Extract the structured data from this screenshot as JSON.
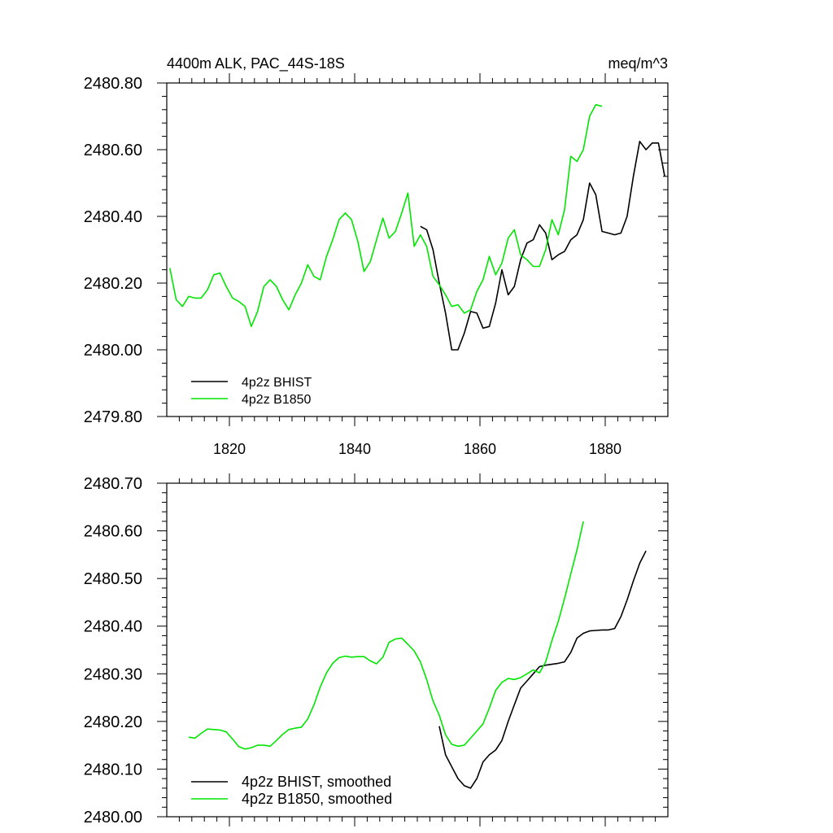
{
  "chart_data": [
    {
      "type": "line",
      "title_left": "4400m ALK, PAC_44S-18S",
      "title_right": "meq/m^3",
      "xlabel": "",
      "ylabel": "",
      "xlim": [
        1810,
        1890
      ],
      "ylim": [
        2479.8,
        2480.8
      ],
      "x_ticks": [
        1820,
        1840,
        1860,
        1880
      ],
      "x_tick_labels": [
        "1820",
        "1840",
        "1860",
        "1880"
      ],
      "y_ticks": [
        2479.8,
        2480.0,
        2480.2,
        2480.4,
        2480.6,
        2480.8
      ],
      "y_tick_labels": [
        "2479.80",
        "2480.00",
        "2480.20",
        "2480.40",
        "2480.60",
        "2480.80"
      ],
      "legend_position": "bottom-left",
      "series": [
        {
          "name": "4p2z BHIST",
          "color": "#000000",
          "x": [
            1850.5,
            1851.5,
            1852.5,
            1853.5,
            1854.5,
            1855.5,
            1856.5,
            1857.5,
            1858.5,
            1859.5,
            1860.5,
            1861.5,
            1862.5,
            1863.5,
            1864.5,
            1865.5,
            1866.5,
            1867.5,
            1868.5,
            1869.5,
            1870.5,
            1871.5,
            1872.5,
            1873.5,
            1874.5,
            1875.5,
            1876.5,
            1877.5,
            1878.5,
            1879.5,
            1880.5,
            1881.5,
            1882.5,
            1883.5,
            1884.5,
            1885.5,
            1886.5,
            1887.5,
            1888.5,
            1889.5
          ],
          "y": [
            2480.37,
            2480.36,
            2480.3,
            2480.2,
            2480.11,
            2480.0,
            2480.0,
            2480.05,
            2480.115,
            2480.11,
            2480.065,
            2480.07,
            2480.14,
            2480.24,
            2480.165,
            2480.19,
            2480.27,
            2480.32,
            2480.33,
            2480.375,
            2480.35,
            2480.27,
            2480.285,
            2480.295,
            2480.33,
            2480.345,
            2480.39,
            2480.5,
            2480.465,
            2480.355,
            2480.35,
            2480.345,
            2480.35,
            2480.4,
            2480.52,
            2480.625,
            2480.6,
            2480.62,
            2480.62,
            2480.52
          ]
        },
        {
          "name": "4p2z B1850",
          "color": "#00e600",
          "x": [
            1810.5,
            1811.5,
            1812.5,
            1813.5,
            1814.5,
            1815.5,
            1816.5,
            1817.5,
            1818.5,
            1819.5,
            1820.5,
            1821.5,
            1822.5,
            1823.5,
            1824.5,
            1825.5,
            1826.5,
            1827.5,
            1828.5,
            1829.5,
            1830.5,
            1831.5,
            1832.5,
            1833.5,
            1834.5,
            1835.5,
            1836.5,
            1837.5,
            1838.5,
            1839.5,
            1840.5,
            1841.5,
            1842.5,
            1843.5,
            1844.5,
            1845.5,
            1846.5,
            1847.5,
            1848.5,
            1849.5,
            1850.5,
            1851.5,
            1852.5,
            1853.5,
            1854.5,
            1855.5,
            1856.5,
            1857.5,
            1858.5,
            1859.5,
            1860.5,
            1861.5,
            1862.5,
            1863.5,
            1864.5,
            1865.5,
            1866.5,
            1867.5,
            1868.5,
            1869.5,
            1870.5,
            1871.5,
            1872.5,
            1873.5,
            1874.5,
            1875.5,
            1876.5,
            1877.5,
            1878.5,
            1879.5
          ],
          "y": [
            2480.245,
            2480.15,
            2480.13,
            2480.16,
            2480.155,
            2480.155,
            2480.18,
            2480.225,
            2480.23,
            2480.19,
            2480.155,
            2480.145,
            2480.13,
            2480.07,
            2480.115,
            2480.19,
            2480.21,
            2480.19,
            2480.15,
            2480.12,
            2480.165,
            2480.2,
            2480.255,
            2480.22,
            2480.21,
            2480.28,
            2480.33,
            2480.39,
            2480.41,
            2480.39,
            2480.325,
            2480.235,
            2480.265,
            2480.33,
            2480.395,
            2480.335,
            2480.355,
            2480.41,
            2480.47,
            2480.31,
            2480.345,
            2480.31,
            2480.22,
            2480.195,
            2480.165,
            2480.13,
            2480.135,
            2480.11,
            2480.12,
            2480.175,
            2480.21,
            2480.28,
            2480.225,
            2480.26,
            2480.335,
            2480.36,
            2480.285,
            2480.27,
            2480.25,
            2480.25,
            2480.3,
            2480.39,
            2480.345,
            2480.42,
            2480.58,
            2480.565,
            2480.6,
            2480.7,
            2480.735,
            2480.73
          ]
        }
      ]
    },
    {
      "type": "line",
      "title": "",
      "xlabel": "",
      "ylabel": "",
      "xlim": [
        1810,
        1890
      ],
      "ylim": [
        2480.0,
        2480.7
      ],
      "x_ticks": [
        1820,
        1840,
        1860,
        1880
      ],
      "y_ticks": [
        2480.0,
        2480.1,
        2480.2,
        2480.3,
        2480.4,
        2480.5,
        2480.6,
        2480.7
      ],
      "y_tick_labels": [
        "2480.00",
        "2480.10",
        "2480.20",
        "2480.30",
        "2480.40",
        "2480.50",
        "2480.60",
        "2480.70"
      ],
      "legend_position": "bottom-left",
      "series": [
        {
          "name": "4p2z BHIST, smoothed",
          "color": "#000000",
          "x": [
            1853.5,
            1854.5,
            1855.5,
            1856.5,
            1857.5,
            1858.5,
            1859.5,
            1860.5,
            1861.5,
            1862.5,
            1863.5,
            1864.5,
            1865.5,
            1866.5,
            1867.5,
            1868.5,
            1869.5,
            1870.5,
            1871.5,
            1872.5,
            1873.5,
            1874.5,
            1875.5,
            1876.5,
            1877.5,
            1878.5,
            1879.5,
            1880.5,
            1881.5,
            1882.5,
            1883.5,
            1884.5,
            1885.5,
            1886.5
          ],
          "y": [
            2480.19,
            2480.13,
            2480.105,
            2480.08,
            2480.065,
            2480.06,
            2480.08,
            2480.115,
            2480.13,
            2480.14,
            2480.16,
            2480.2,
            2480.235,
            2480.27,
            2480.285,
            2480.3,
            2480.315,
            2480.318,
            2480.32,
            2480.322,
            2480.325,
            2480.345,
            2480.375,
            2480.385,
            2480.39,
            2480.391,
            2480.392,
            2480.392,
            2480.395,
            2480.42,
            2480.455,
            2480.495,
            2480.532,
            2480.558
          ]
        },
        {
          "name": "4p2z B1850, smoothed",
          "color": "#00e600",
          "x": [
            1813.5,
            1814.5,
            1815.5,
            1816.5,
            1817.5,
            1818.5,
            1819.5,
            1820.5,
            1821.5,
            1822.5,
            1823.5,
            1824.5,
            1825.5,
            1826.5,
            1827.5,
            1828.5,
            1829.5,
            1830.5,
            1831.5,
            1832.5,
            1833.5,
            1834.5,
            1835.5,
            1836.5,
            1837.5,
            1838.5,
            1839.5,
            1840.5,
            1841.5,
            1842.5,
            1843.5,
            1844.5,
            1845.5,
            1846.5,
            1847.5,
            1848.5,
            1849.5,
            1850.5,
            1851.5,
            1852.5,
            1853.5,
            1854.5,
            1855.5,
            1856.5,
            1857.5,
            1858.5,
            1859.5,
            1860.5,
            1861.5,
            1862.5,
            1863.5,
            1864.5,
            1865.5,
            1866.5,
            1867.5,
            1868.5,
            1869.5,
            1870.5,
            1871.5,
            1872.5,
            1873.5,
            1874.5,
            1875.5,
            1876.5
          ],
          "y": [
            2480.167,
            2480.165,
            2480.175,
            2480.184,
            2480.183,
            2480.182,
            2480.178,
            2480.163,
            2480.147,
            2480.142,
            2480.145,
            2480.15,
            2480.15,
            2480.148,
            2480.16,
            2480.173,
            2480.183,
            2480.186,
            2480.188,
            2480.205,
            2480.235,
            2480.272,
            2480.302,
            2480.322,
            2480.334,
            2480.337,
            2480.335,
            2480.336,
            2480.336,
            2480.327,
            2480.321,
            2480.335,
            2480.366,
            2480.373,
            2480.375,
            2480.362,
            2480.348,
            2480.325,
            2480.288,
            2480.243,
            2480.213,
            2480.172,
            2480.152,
            2480.148,
            2480.15,
            2480.165,
            2480.18,
            2480.195,
            2480.228,
            2480.265,
            2480.282,
            2480.29,
            2480.288,
            2480.292,
            2480.3,
            2480.308,
            2480.302,
            2480.325,
            2480.37,
            2480.41,
            2480.458,
            2480.51,
            2480.56,
            2480.62
          ]
        }
      ]
    }
  ]
}
